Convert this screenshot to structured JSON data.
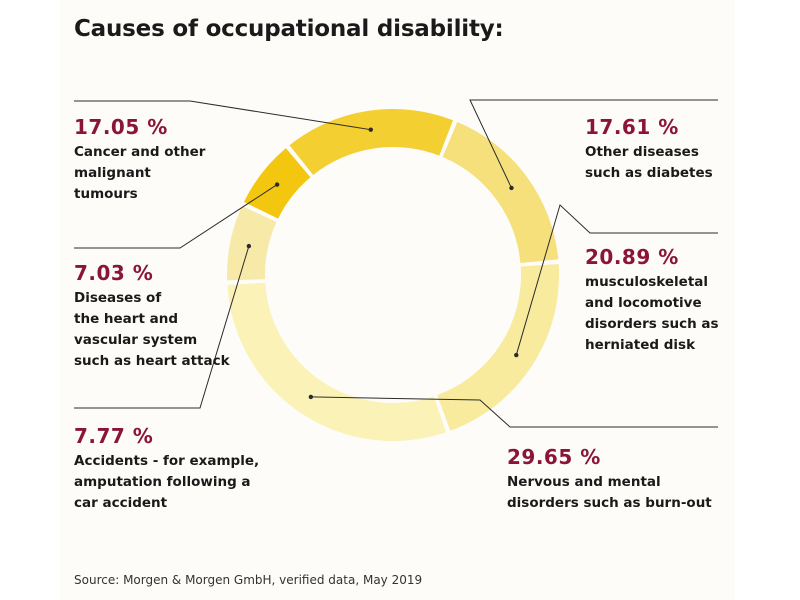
{
  "chart_data": {
    "type": "pie",
    "title": "Causes of occupational disability:",
    "source": "Source: Morgen & Morgen GmbH, verified data, May 2019",
    "segments": [
      {
        "label": "Other diseases such as diabetes",
        "pct_text": "17.61 %",
        "lines": [
          "Other diseases",
          "such as diabetes"
        ],
        "value": 17.61,
        "color": "#f6e07c"
      },
      {
        "label": "musculoskeletal and locomotive disorders such as herniated disk",
        "pct_text": "20.89 %",
        "lines": [
          "musculoskeletal",
          "and locomotive",
          "disorders such as",
          "herniated disk"
        ],
        "value": 20.89,
        "color": "#f8eb9e"
      },
      {
        "label": "Nervous and mental disorders such as burn-out",
        "pct_text": "29.65 %",
        "lines": [
          "Nervous and mental",
          "disorders such as burn-out"
        ],
        "value": 29.65,
        "color": "#fbf2b8"
      },
      {
        "label": "Accidents - for example, amputation following a car accident",
        "pct_text": "7.77 %",
        "lines": [
          "Accidents - for example,",
          "amputation following a",
          "car accident"
        ],
        "value": 7.77,
        "color": "#f7e9a8"
      },
      {
        "label": "Diseases of the heart and vascular system such as heart attack",
        "pct_text": "7.03 %",
        "lines": [
          "Diseases of",
          "the heart and",
          "vascular system",
          "such as heart attack"
        ],
        "value": 7.03,
        "color": "#f3c60f"
      },
      {
        "label": "Cancer and other malignant tumours",
        "pct_text": "17.05 %",
        "lines": [
          "Cancer and other",
          "malignant",
          "tumours"
        ],
        "value": 17.05,
        "color": "#f4cf31"
      }
    ]
  }
}
